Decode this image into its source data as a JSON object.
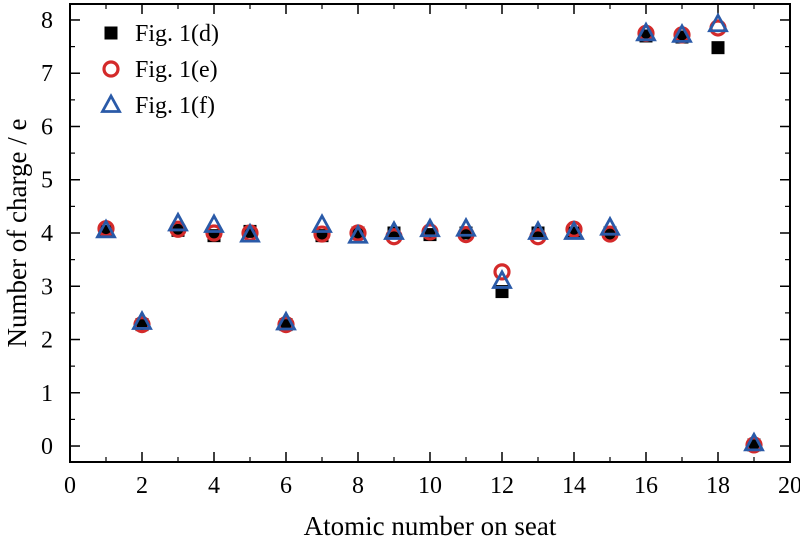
{
  "chart_data": {
    "type": "scatter",
    "title": "",
    "xlabel": "Atomic number on seat",
    "ylabel": "Number of charge / e",
    "xlim": [
      0,
      20
    ],
    "ylim": [
      -0.3,
      8.3
    ],
    "x_ticks": [
      0,
      2,
      4,
      6,
      8,
      10,
      12,
      14,
      16,
      18,
      20
    ],
    "y_ticks": [
      0,
      1,
      2,
      3,
      4,
      5,
      6,
      7,
      8
    ],
    "grid": false,
    "legend_position": "top-left",
    "series": [
      {
        "name": "Fig. 1(d)",
        "marker": "filled-square",
        "color": "#000000",
        "x": [
          1,
          2,
          3,
          4,
          5,
          6,
          7,
          8,
          9,
          10,
          11,
          12,
          13,
          14,
          15,
          16,
          17,
          18,
          19
        ],
        "y": [
          4.03,
          2.28,
          4.05,
          3.95,
          4.03,
          2.28,
          3.95,
          4.0,
          4.0,
          3.97,
          4.0,
          2.9,
          4.0,
          4.0,
          4.0,
          7.7,
          7.68,
          7.48,
          0.02
        ]
      },
      {
        "name": "Fig. 1(e)",
        "marker": "open-circle",
        "color": "#d42a2a",
        "x": [
          1,
          2,
          3,
          4,
          5,
          6,
          7,
          8,
          9,
          10,
          11,
          12,
          13,
          14,
          15,
          16,
          17,
          18,
          19
        ],
        "y": [
          4.08,
          2.28,
          4.07,
          4.0,
          4.0,
          2.28,
          3.98,
          4.0,
          3.93,
          4.02,
          3.97,
          3.27,
          3.93,
          4.07,
          3.98,
          7.75,
          7.72,
          7.85,
          0.02
        ]
      },
      {
        "name": "Fig. 1(f)",
        "marker": "open-triangle",
        "color": "#2a5aa8",
        "x": [
          1,
          2,
          3,
          4,
          5,
          6,
          7,
          8,
          9,
          10,
          11,
          12,
          13,
          14,
          15,
          16,
          17,
          18,
          19
        ],
        "y": [
          4.05,
          2.33,
          4.18,
          4.15,
          3.97,
          2.32,
          4.15,
          3.95,
          4.02,
          4.07,
          4.08,
          3.1,
          4.02,
          4.02,
          4.1,
          7.75,
          7.72,
          7.92,
          0.05
        ]
      }
    ]
  }
}
